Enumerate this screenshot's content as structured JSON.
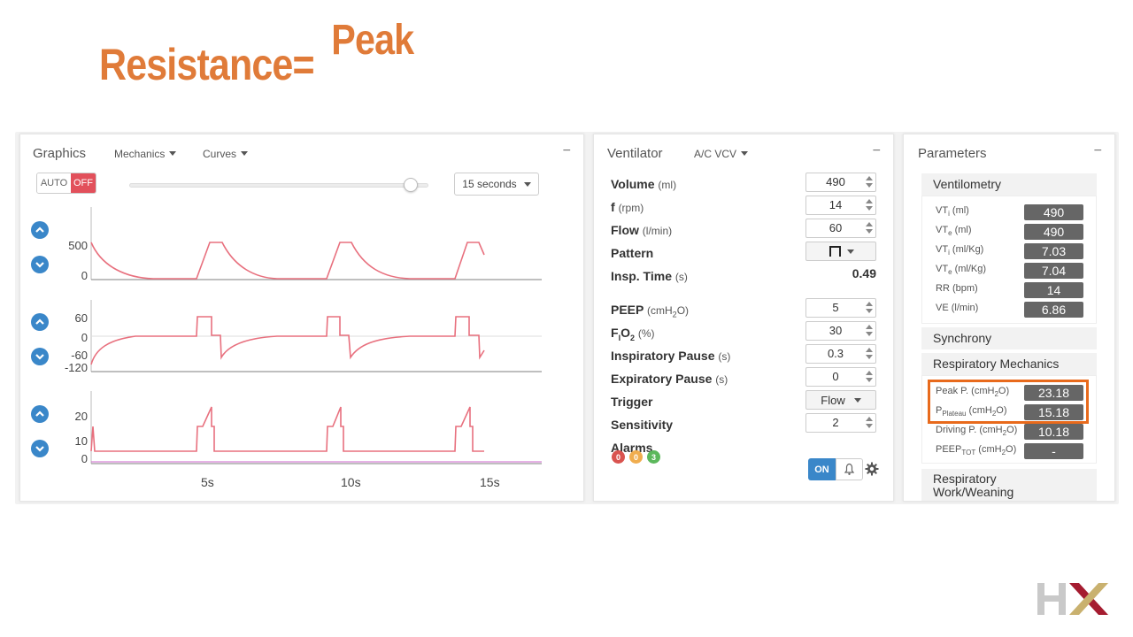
{
  "slide": {
    "title": "Resistance=",
    "numerator": "Peak"
  },
  "graphics": {
    "title": "Graphics",
    "menu1": "Mechanics",
    "menu2": "Curves",
    "minimize": "−",
    "auto_label": "AUTO",
    "off_label": "OFF",
    "time_window": "15 seconds",
    "slider_value": 0.94,
    "volume_y": [
      "500",
      "0"
    ],
    "pressure_y": [
      "60",
      "0",
      "-60",
      "-120"
    ],
    "flow_y": [
      "20",
      "10",
      "0"
    ],
    "x_ticks": [
      "5s",
      "10s",
      "15s"
    ]
  },
  "ventilator": {
    "title": "Ventilator",
    "mode": "A/C VCV",
    "minimize": "−",
    "rows": {
      "volume": {
        "label": "Volume",
        "unit": "(ml)",
        "value": "490"
      },
      "f": {
        "label": "f",
        "unit": "(rpm)",
        "value": "14"
      },
      "flow": {
        "label": "Flow",
        "unit": "(l/min)",
        "value": "60"
      },
      "pattern": {
        "label": "Pattern"
      },
      "insp_time": {
        "label": "Insp. Time",
        "unit": "(s)",
        "value": "0.49"
      },
      "peep": {
        "label": "PEEP",
        "unit_pre": "(cmH",
        "unit_sub": "2",
        "unit_post": "O)",
        "value": "5"
      },
      "fio2": {
        "label_pre": "F",
        "label_sub": "I",
        "label_mid": "O",
        "label_sub2": "2",
        "unit": "(%)",
        "value": "30"
      },
      "insp_pause": {
        "label": "Inspiratory Pause",
        "unit": "(s)",
        "value": "0.3"
      },
      "exp_pause": {
        "label": "Expiratory Pause",
        "unit": "(s)",
        "value": "0"
      },
      "trigger": {
        "label": "Trigger",
        "value": "Flow"
      },
      "sensitivity": {
        "label": "Sensitivity",
        "value": "2"
      },
      "alarms": {
        "label": "Alarms"
      }
    },
    "alarm_counts": [
      {
        "count": "0",
        "color": "#d9534f"
      },
      {
        "count": "0",
        "color": "#f0ad4e"
      },
      {
        "count": "3",
        "color": "#5cb85c"
      }
    ],
    "alarm_toggle": "ON"
  },
  "parameters": {
    "title": "Parameters",
    "minimize": "−",
    "ventilometry": {
      "title": "Ventilometry",
      "rows": [
        {
          "pre": "VT",
          "sub": "i",
          "unit": " (ml)",
          "value": "490"
        },
        {
          "pre": "VT",
          "sub": "e",
          "unit": " (ml)",
          "value": "490"
        },
        {
          "pre": "VT",
          "sub": "i",
          "unit": " (ml/Kg)",
          "value": "7.03"
        },
        {
          "pre": "VT",
          "sub": "e",
          "unit": " (ml/Kg)",
          "value": "7.04"
        },
        {
          "pre": "RR",
          "sub": "",
          "unit": " (bpm)",
          "value": "14"
        },
        {
          "pre": "VE",
          "sub": "",
          "unit": " (l/min)",
          "value": "6.86"
        }
      ]
    },
    "synchrony": {
      "title": "Synchrony"
    },
    "mechanics": {
      "title": "Respiratory Mechanics",
      "rows": [
        {
          "pre": "Peak P.",
          "sub": "",
          "unit": "(cmH",
          "unit_sub": "2",
          "unit_post": "O)",
          "value": "23.18"
        },
        {
          "pre": "P",
          "sub": "Plateau",
          "unit": "(cmH",
          "unit_sub": "2",
          "unit_post": "O)",
          "value": "15.18"
        },
        {
          "pre": "Driving P.",
          "sub": "",
          "unit": "(cmH",
          "unit_sub": "2",
          "unit_post": "O)",
          "value": "10.18"
        },
        {
          "pre": "PEEP",
          "sub": "TOT",
          "unit": "(cmH",
          "unit_sub": "2",
          "unit_post": "O)",
          "value": "-"
        }
      ]
    },
    "weaning": {
      "title_line1": "Respiratory",
      "title_line2": "Work/Weaning"
    }
  },
  "colors": {
    "accent": "#e07b39",
    "curve": "#e8707e",
    "button_blue": "#3a87c9",
    "highlight": "#e86a1c"
  }
}
